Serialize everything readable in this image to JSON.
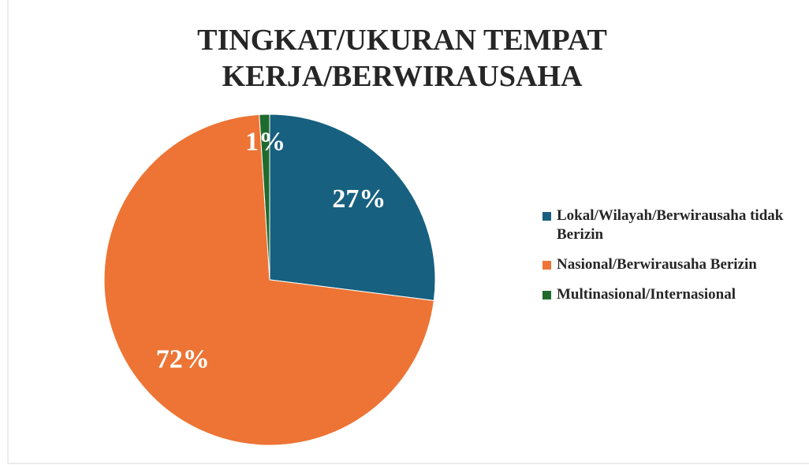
{
  "chart_data": {
    "type": "pie",
    "title": "TINGKAT/UKURAN TEMPAT KERJA/BERWIRAUSAHA",
    "categories": [
      "Lokal/Wilayah/Berwirausaha tidak Berizin",
      "Nasional/Berwirausaha Berizin",
      "Multinasional/Internasional"
    ],
    "values": [
      27,
      72,
      1
    ],
    "value_labels": [
      "27%",
      "72%",
      "1%"
    ],
    "colors": [
      "#17607f",
      "#ed7434",
      "#1f6b2e"
    ],
    "legend": "right"
  }
}
